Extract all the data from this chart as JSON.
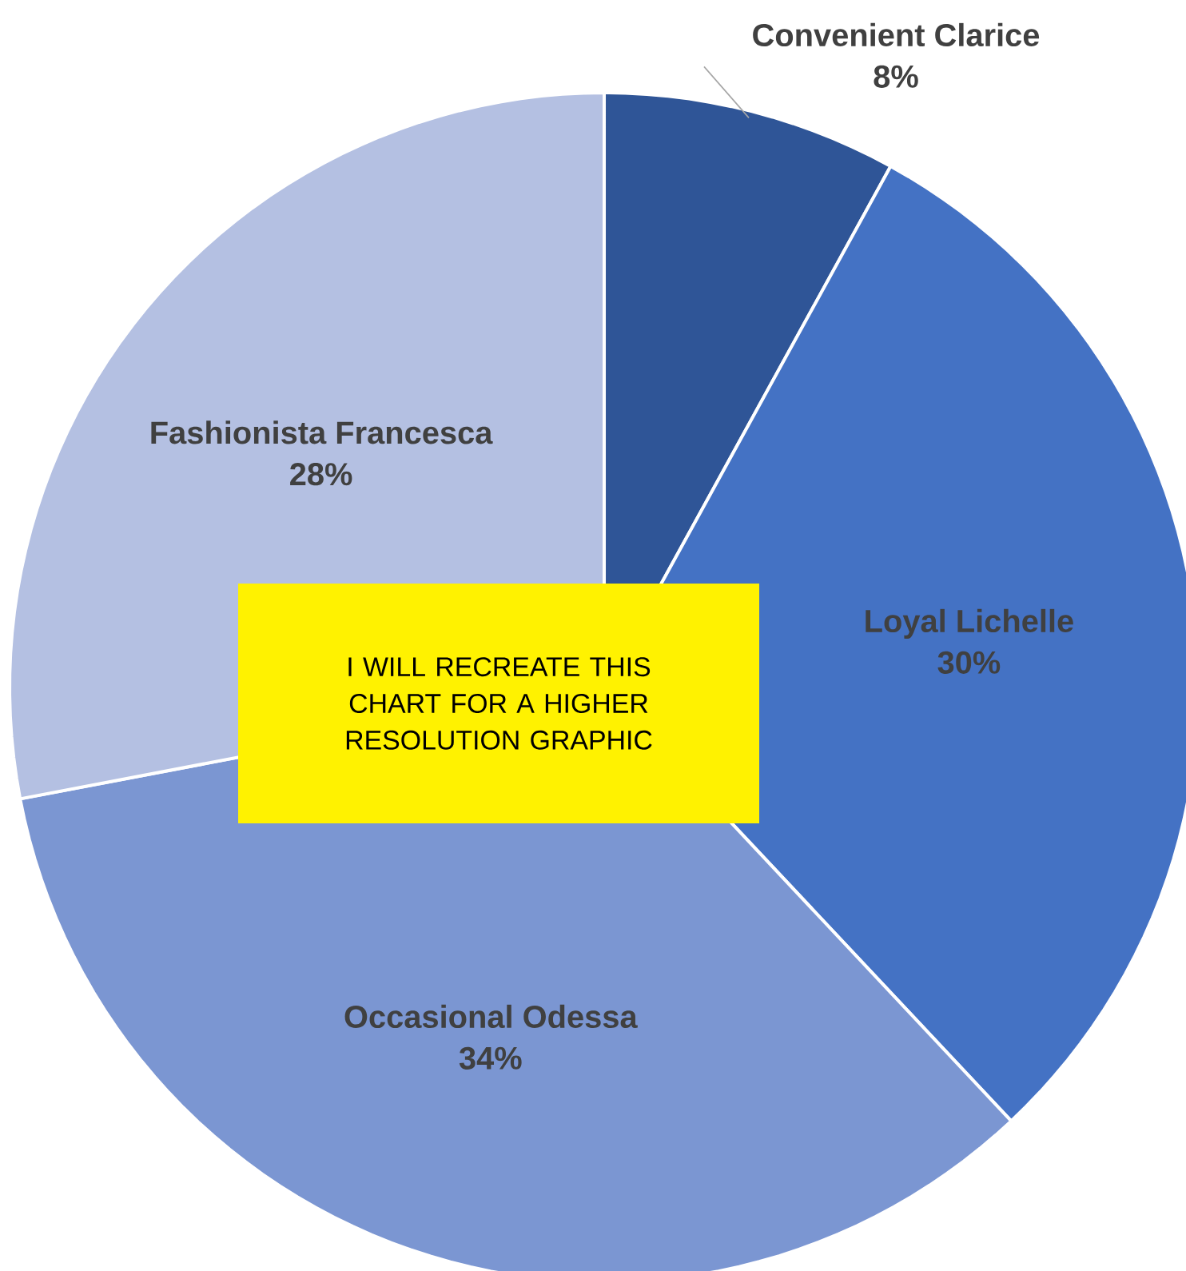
{
  "chart_data": {
    "type": "pie",
    "categories": [
      "Convenient Clarice",
      "Loyal Lichelle",
      "Occasional Odessa",
      "Fashionista Francesca"
    ],
    "values": [
      8,
      30,
      34,
      28
    ],
    "value_labels": [
      "8%",
      "30%",
      "34%",
      "28%"
    ],
    "colors": [
      "#2f5597",
      "#4472c4",
      "#7b96d2",
      "#b4c0e2"
    ],
    "annotations": [
      "I WILL RECREATE THIS CHART FOR A HIGHER RESOLUTION GRAPHIC"
    ]
  }
}
